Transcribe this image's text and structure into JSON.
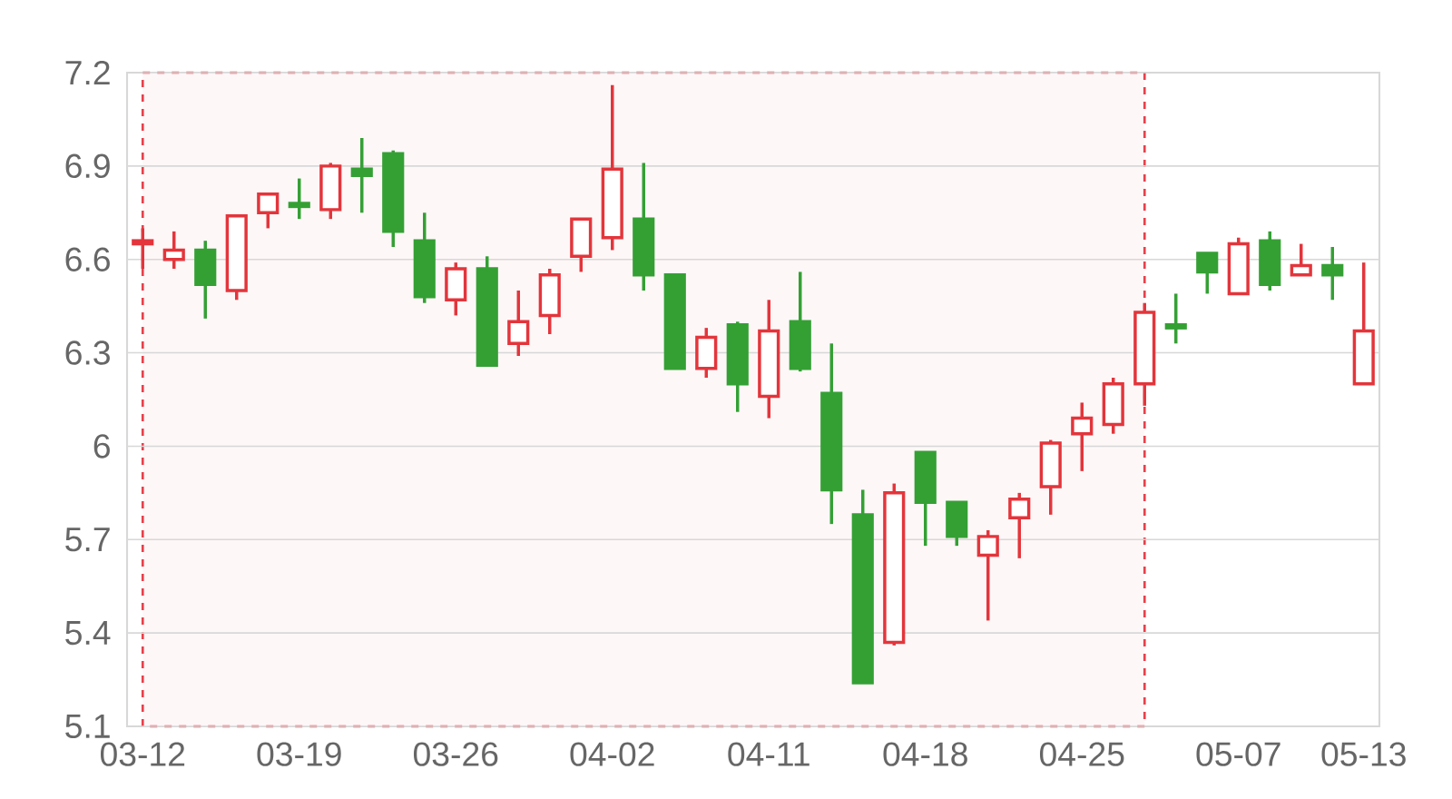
{
  "chart_data": {
    "type": "candlestick",
    "categories": [
      "03-12",
      null,
      null,
      null,
      null,
      "03-19",
      null,
      null,
      null,
      null,
      "03-26",
      null,
      null,
      null,
      null,
      "04-02",
      null,
      null,
      null,
      null,
      "04-11",
      null,
      null,
      null,
      null,
      "04-18",
      null,
      null,
      null,
      null,
      "04-25",
      null,
      null,
      null,
      null,
      "05-07",
      null,
      null,
      null,
      "05-13"
    ],
    "ohlc": [
      [
        6.65,
        6.7,
        6.57,
        6.66
      ],
      [
        6.6,
        6.69,
        6.57,
        6.63
      ],
      [
        6.63,
        6.66,
        6.41,
        6.52
      ],
      [
        6.5,
        6.74,
        6.47,
        6.74
      ],
      [
        6.75,
        6.81,
        6.7,
        6.81
      ],
      [
        6.78,
        6.86,
        6.73,
        6.77
      ],
      [
        6.76,
        6.91,
        6.73,
        6.9
      ],
      [
        6.89,
        6.99,
        6.75,
        6.87
      ],
      [
        6.94,
        6.95,
        6.64,
        6.69
      ],
      [
        6.66,
        6.75,
        6.46,
        6.48
      ],
      [
        6.47,
        6.59,
        6.42,
        6.57
      ],
      [
        6.57,
        6.61,
        6.26,
        6.26
      ],
      [
        6.33,
        6.5,
        6.29,
        6.4
      ],
      [
        6.42,
        6.57,
        6.36,
        6.55
      ],
      [
        6.61,
        6.73,
        6.56,
        6.73
      ],
      [
        6.67,
        7.16,
        6.63,
        6.89
      ],
      [
        6.73,
        6.91,
        6.5,
        6.55
      ],
      [
        6.55,
        6.55,
        6.25,
        6.25
      ],
      [
        6.25,
        6.38,
        6.22,
        6.35
      ],
      [
        6.39,
        6.4,
        6.11,
        6.2
      ],
      [
        6.16,
        6.47,
        6.09,
        6.37
      ],
      [
        6.4,
        6.56,
        6.24,
        6.25
      ],
      [
        6.17,
        6.33,
        5.75,
        5.86
      ],
      [
        5.78,
        5.86,
        5.24,
        5.24
      ],
      [
        5.37,
        5.88,
        5.36,
        5.85
      ],
      [
        5.98,
        5.98,
        5.68,
        5.82
      ],
      [
        5.82,
        5.82,
        5.68,
        5.71
      ],
      [
        5.65,
        5.73,
        5.44,
        5.71
      ],
      [
        5.77,
        5.85,
        5.64,
        5.83
      ],
      [
        5.87,
        6.02,
        5.78,
        6.01
      ],
      [
        6.04,
        6.14,
        5.92,
        6.09
      ],
      [
        6.07,
        6.22,
        6.04,
        6.2
      ],
      [
        6.2,
        6.46,
        6.13,
        6.43
      ],
      [
        6.39,
        6.49,
        6.33,
        6.38
      ],
      [
        6.62,
        6.62,
        6.49,
        6.56
      ],
      [
        6.49,
        6.67,
        6.49,
        6.65
      ],
      [
        6.66,
        6.69,
        6.5,
        6.52
      ],
      [
        6.55,
        6.65,
        6.55,
        6.58
      ],
      [
        6.58,
        6.64,
        6.47,
        6.55
      ],
      [
        6.2,
        6.59,
        6.2,
        6.37
      ]
    ],
    "colors": [
      "#e3353b",
      "#e3353b",
      "#34a034",
      "#e3353b",
      "#e3353b",
      "#34a034",
      "#e3353b",
      "#34a034",
      "#34a034",
      "#34a034",
      "#e3353b",
      "#34a034",
      "#e3353b",
      "#e3353b",
      "#e3353b",
      "#e3353b",
      "#34a034",
      "#34a034",
      "#e3353b",
      "#34a034",
      "#e3353b",
      "#34a034",
      "#34a034",
      "#34a034",
      "#e3353b",
      "#34a034",
      "#34a034",
      "#e3353b",
      "#e3353b",
      "#e3353b",
      "#e3353b",
      "#e3353b",
      "#e3353b",
      "#34a034",
      "#34a034",
      "#e3353b",
      "#34a034",
      "#e3353b",
      "#34a034",
      "#e3353b"
    ],
    "ylim": [
      5.1,
      7.2
    ],
    "yticks": [
      5.1,
      5.4,
      5.7,
      6,
      6.3,
      6.6,
      6.9,
      7.2
    ],
    "grid": "y"
  }
}
